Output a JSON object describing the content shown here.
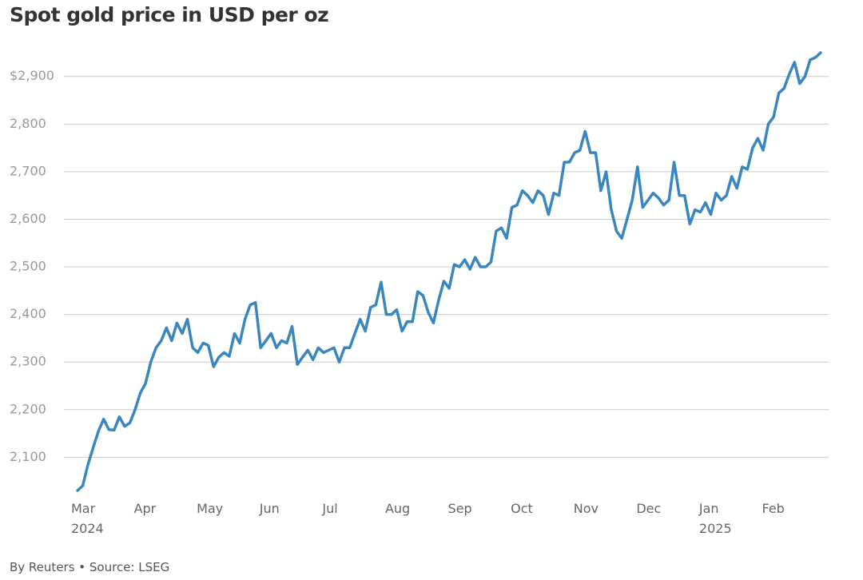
{
  "chart_data": {
    "type": "line",
    "title": "Spot gold price in USD per oz",
    "source": "By Reuters • Source: LSEG",
    "categories": [
      "Mar\n2024",
      null,
      null,
      null,
      null,
      null,
      null,
      null,
      null,
      null,
      null,
      null,
      "Apr",
      null,
      null,
      null,
      null,
      null,
      null,
      null,
      null,
      null,
      null,
      null,
      "May",
      null,
      null,
      null,
      null,
      null,
      null,
      null,
      null,
      null,
      null,
      null,
      "Jun",
      null,
      null,
      null,
      null,
      null,
      null,
      null,
      null,
      null,
      null,
      null,
      "Jul",
      null,
      null,
      null,
      null,
      null,
      null,
      null,
      null,
      null,
      null,
      null,
      "Aug",
      null,
      null,
      null,
      null,
      null,
      null,
      null,
      null,
      null,
      null,
      null,
      "Sep",
      null,
      null,
      null,
      null,
      null,
      null,
      null,
      null,
      null,
      null,
      null,
      "Oct",
      null,
      null,
      null,
      null,
      null,
      null,
      null,
      null,
      null,
      null,
      null,
      "Nov",
      null,
      null,
      null,
      null,
      null,
      null,
      null,
      null,
      null,
      null,
      null,
      "Dec",
      null,
      null,
      null,
      null,
      null,
      null,
      null,
      null,
      null,
      null,
      null,
      "Jan\n2025",
      null,
      null,
      null,
      null,
      null,
      null,
      null,
      null,
      null,
      null,
      null,
      "Feb",
      null,
      null,
      null,
      null,
      null,
      null,
      null,
      null,
      null,
      null
    ],
    "values": [
      2030,
      2040,
      2085,
      2120,
      2155,
      2180,
      2158,
      2157,
      2185,
      2165,
      2172,
      2200,
      2235,
      2255,
      2300,
      2330,
      2345,
      2372,
      2345,
      2382,
      2360,
      2390,
      2330,
      2320,
      2340,
      2335,
      2290,
      2310,
      2320,
      2312,
      2360,
      2340,
      2390,
      2420,
      2425,
      2330,
      2345,
      2360,
      2330,
      2345,
      2340,
      2375,
      2295,
      2310,
      2325,
      2305,
      2330,
      2320,
      2325,
      2330,
      2300,
      2330,
      2330,
      2360,
      2390,
      2365,
      2415,
      2420,
      2468,
      2400,
      2400,
      2410,
      2365,
      2385,
      2385,
      2448,
      2440,
      2405,
      2382,
      2430,
      2470,
      2455,
      2505,
      2500,
      2515,
      2495,
      2520,
      2500,
      2500,
      2510,
      2575,
      2582,
      2560,
      2625,
      2630,
      2660,
      2650,
      2635,
      2660,
      2650,
      2610,
      2655,
      2650,
      2720,
      2720,
      2740,
      2745,
      2785,
      2740,
      2740,
      2660,
      2700,
      2620,
      2575,
      2560,
      2600,
      2640,
      2710,
      2625,
      2640,
      2655,
      2645,
      2630,
      2640,
      2720,
      2650,
      2650,
      2590,
      2620,
      2615,
      2635,
      2610,
      2655,
      2640,
      2650,
      2690,
      2665,
      2710,
      2705,
      2750,
      2770,
      2745,
      2800,
      2815,
      2865,
      2875,
      2905,
      2930,
      2885,
      2900,
      2935,
      2940,
      2950
    ],
    "color": "#3a87c0",
    "ylim": [
      2020,
      2960
    ],
    "yticks": [
      {
        "value": 2100,
        "label": "2,100"
      },
      {
        "value": 2200,
        "label": "2,200"
      },
      {
        "value": 2300,
        "label": "2,300"
      },
      {
        "value": 2400,
        "label": "2,400"
      },
      {
        "value": 2500,
        "label": "2,500"
      },
      {
        "value": 2600,
        "label": "2,600"
      },
      {
        "value": 2700,
        "label": "2,700"
      },
      {
        "value": 2800,
        "label": "2,800"
      },
      {
        "value": 2900,
        "label": "$2,900"
      }
    ],
    "grid": true
  }
}
